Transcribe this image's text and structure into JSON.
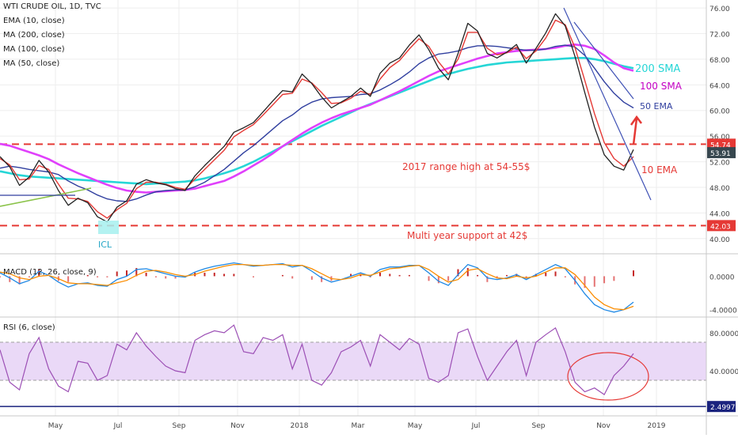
{
  "header": {
    "symbol": "WTI CRUDE OIL, 1D, TVC",
    "indicators": [
      "EMA (10, close)",
      "MA (200, close)",
      "MA (100, close)",
      "MA (50, close)"
    ]
  },
  "chart_data": {
    "type": "line",
    "title": "WTI CRUDE OIL, 1D, TVC",
    "x_ticks": [
      "May",
      "Jul",
      "Sep",
      "Nov",
      "2018",
      "Mar",
      "May",
      "Jul",
      "Sep",
      "Nov",
      "2019"
    ],
    "price_axis": {
      "ticks": [
        "76.00",
        "72.00",
        "68.00",
        "64.00",
        "60.00",
        "56.00",
        "52.00",
        "48.00",
        "44.00",
        "40.00"
      ],
      "ylim": [
        38,
        77
      ]
    },
    "price_badges": {
      "resistance": "54.74",
      "last": "53.91",
      "support": "42.03"
    },
    "price_series": [
      {
        "name": "Price",
        "color": "#222222",
        "values": [
          52.8,
          51.2,
          48.3,
          49.6,
          52.2,
          50.4,
          47.5,
          45.2,
          46.3,
          45.6,
          43.4,
          42.6,
          44.9,
          45.9,
          48.5,
          49.2,
          48.7,
          48.4,
          47.8,
          47.5,
          49.8,
          51.4,
          52.9,
          54.4,
          56.6,
          57.3,
          58.1,
          59.8,
          61.5,
          63.1,
          62.9,
          65.7,
          64.2,
          62.1,
          60.4,
          61.3,
          62.2,
          63.5,
          62.2,
          65.8,
          67.4,
          68.2,
          70.2,
          71.8,
          69.5,
          66.6,
          64.8,
          68.9,
          73.6,
          72.4,
          68.9,
          68.2,
          69.1,
          70.3,
          67.4,
          69.7,
          72.1,
          75.1,
          73.2,
          68.4,
          62.8,
          57.4,
          53.1,
          51.3,
          50.7,
          53.9
        ]
      },
      {
        "name": "EMA 10",
        "color": "#e53935",
        "values": [
          52.5,
          51.5,
          49.2,
          49.3,
          51.4,
          50.8,
          48.5,
          46.3,
          46.2,
          45.8,
          44.2,
          43.2,
          44.5,
          45.5,
          47.8,
          48.8,
          48.8,
          48.5,
          48.0,
          47.7,
          49.3,
          50.8,
          52.3,
          53.8,
          55.9,
          56.9,
          57.8,
          59.3,
          60.9,
          62.5,
          62.7,
          64.9,
          64.3,
          62.8,
          61.1,
          61.2,
          61.9,
          63.0,
          62.5,
          64.9,
          66.7,
          67.8,
          69.6,
          71.2,
          70.0,
          67.6,
          65.7,
          68.0,
          72.2,
          72.2,
          69.7,
          68.7,
          69.0,
          69.9,
          68.1,
          69.3,
          71.3,
          74.1,
          73.4,
          69.8,
          64.7,
          59.5,
          55.0,
          52.5,
          51.3,
          52.8
        ]
      },
      {
        "name": "MA 50",
        "color": "#303f9f",
        "values": [
          51.0,
          51.3,
          51.1,
          50.8,
          50.6,
          50.4,
          50.0,
          49.0,
          48.2,
          47.6,
          46.8,
          46.2,
          45.9,
          45.8,
          46.2,
          46.8,
          47.3,
          47.5,
          47.6,
          47.6,
          48.1,
          48.8,
          49.8,
          50.8,
          52.1,
          53.4,
          54.5,
          55.8,
          57.1,
          58.4,
          59.3,
          60.5,
          61.3,
          61.8,
          62.0,
          62.1,
          62.2,
          62.5,
          62.6,
          63.2,
          64.0,
          64.9,
          66.0,
          67.3,
          68.2,
          68.8,
          69.0,
          69.3,
          69.8,
          70.1,
          70.1,
          70.0,
          69.8,
          69.6,
          69.4,
          69.4,
          69.6,
          70.0,
          70.2,
          69.9,
          68.6,
          66.6,
          64.5,
          62.7,
          61.3,
          60.4
        ]
      },
      {
        "name": "MA 100",
        "color": "#e040fb",
        "values": [
          54.8,
          54.5,
          54.0,
          53.5,
          53.0,
          52.4,
          51.6,
          50.9,
          50.2,
          49.6,
          49.0,
          48.4,
          47.9,
          47.5,
          47.3,
          47.2,
          47.3,
          47.4,
          47.5,
          47.6,
          47.8,
          48.2,
          48.6,
          49.0,
          49.7,
          50.5,
          51.4,
          52.3,
          53.3,
          54.4,
          55.4,
          56.4,
          57.3,
          58.1,
          58.8,
          59.4,
          59.9,
          60.4,
          60.9,
          61.6,
          62.3,
          63.0,
          63.8,
          64.6,
          65.4,
          66.1,
          66.6,
          67.1,
          67.6,
          68.1,
          68.5,
          68.9,
          69.1,
          69.3,
          69.4,
          69.5,
          69.6,
          69.8,
          70.1,
          70.3,
          70.1,
          69.6,
          68.6,
          67.5,
          66.6,
          66.2
        ]
      },
      {
        "name": "MA 200",
        "color": "#26d6d6",
        "values": [
          50.5,
          50.2,
          49.9,
          49.7,
          49.6,
          49.5,
          49.4,
          49.3,
          49.2,
          49.1,
          49.0,
          48.9,
          48.8,
          48.7,
          48.6,
          48.5,
          48.6,
          48.7,
          48.8,
          48.9,
          49.1,
          49.4,
          49.8,
          50.2,
          50.7,
          51.3,
          52.0,
          52.8,
          53.6,
          54.4,
          55.2,
          56.0,
          56.8,
          57.6,
          58.3,
          59.0,
          59.7,
          60.4,
          61.0,
          61.6,
          62.2,
          62.8,
          63.4,
          64.0,
          64.6,
          65.2,
          65.7,
          66.1,
          66.5,
          66.8,
          67.1,
          67.3,
          67.5,
          67.6,
          67.7,
          67.8,
          67.9,
          68.0,
          68.1,
          68.2,
          68.2,
          68.0,
          67.7,
          67.3,
          66.9,
          66.6
        ]
      }
    ],
    "macd": {
      "label": "MACD (12, 26, close, 9)",
      "ticks": [
        "0.0000",
        "-4.0000"
      ],
      "ylim": [
        -4.6,
        2.4
      ],
      "macd_line": [
        0.4,
        -0.2,
        -0.9,
        -0.5,
        0.6,
        0.1,
        -0.7,
        -1.3,
        -0.9,
        -0.8,
        -1.1,
        -1.2,
        -0.4,
        0.0,
        0.8,
        0.9,
        0.6,
        0.3,
        0.0,
        -0.1,
        0.5,
        0.9,
        1.2,
        1.4,
        1.6,
        1.4,
        1.2,
        1.3,
        1.4,
        1.5,
        1.1,
        1.3,
        0.6,
        -0.2,
        -0.7,
        -0.4,
        0.0,
        0.4,
        0.0,
        0.8,
        1.1,
        1.1,
        1.3,
        1.3,
        0.4,
        -0.6,
        -1.1,
        0.2,
        1.4,
        1.0,
        -0.2,
        -0.4,
        -0.2,
        0.2,
        -0.4,
        0.2,
        0.8,
        1.4,
        0.9,
        -0.5,
        -2.1,
        -3.4,
        -4.0,
        -4.3,
        -4.0,
        -3.1
      ],
      "signal_line": [
        0.5,
        0.3,
        -0.2,
        -0.4,
        0.0,
        0.1,
        -0.3,
        -0.8,
        -0.9,
        -0.9,
        -1.0,
        -1.1,
        -0.8,
        -0.5,
        0.1,
        0.6,
        0.7,
        0.5,
        0.2,
        0.0,
        0.2,
        0.6,
        0.9,
        1.2,
        1.4,
        1.4,
        1.3,
        1.3,
        1.4,
        1.4,
        1.3,
        1.3,
        0.9,
        0.3,
        -0.3,
        -0.4,
        -0.2,
        0.2,
        0.1,
        0.5,
        0.9,
        1.0,
        1.2,
        1.3,
        0.8,
        0.0,
        -0.7,
        -0.4,
        0.7,
        0.9,
        0.3,
        -0.2,
        -0.3,
        0.0,
        -0.2,
        0.0,
        0.5,
        1.0,
        1.0,
        0.2,
        -1.1,
        -2.5,
        -3.4,
        -3.9,
        -4.0,
        -3.6
      ]
    },
    "rsi": {
      "label": "RSI (6, close)",
      "ticks": [
        "80.0000",
        "40.0000"
      ],
      "ylim": [
        -4,
        94
      ],
      "upper_band": 70,
      "lower_band": 30,
      "blue_line_value": 2.4997,
      "blue_line_label": "2.4997",
      "values": [
        62,
        28,
        20,
        58,
        75,
        42,
        24,
        18,
        50,
        48,
        30,
        35,
        68,
        62,
        80,
        66,
        55,
        45,
        40,
        38,
        72,
        78,
        82,
        80,
        88,
        60,
        58,
        75,
        72,
        78,
        42,
        68,
        30,
        25,
        38,
        60,
        65,
        72,
        45,
        78,
        70,
        62,
        74,
        68,
        32,
        28,
        35,
        80,
        84,
        55,
        30,
        45,
        60,
        72,
        35,
        70,
        78,
        85,
        60,
        28,
        18,
        22,
        15,
        35,
        45,
        58
      ]
    },
    "annotations": {
      "range_high": "2017 range high at 54-55$",
      "support": "Multi year support at 42$",
      "sma200": "200 SMA",
      "sma100": "100 SMA",
      "ema50": "50 EMA",
      "ema10": "10 EMA",
      "icl": "ICL"
    },
    "colors": {
      "support_line": "#e53935",
      "trendline": "#3f51b5",
      "cyan": "#26d6d6",
      "magenta": "#c400c4",
      "rsi_line": "#9c4fb5",
      "rsi_band": "#ead9f7"
    }
  }
}
